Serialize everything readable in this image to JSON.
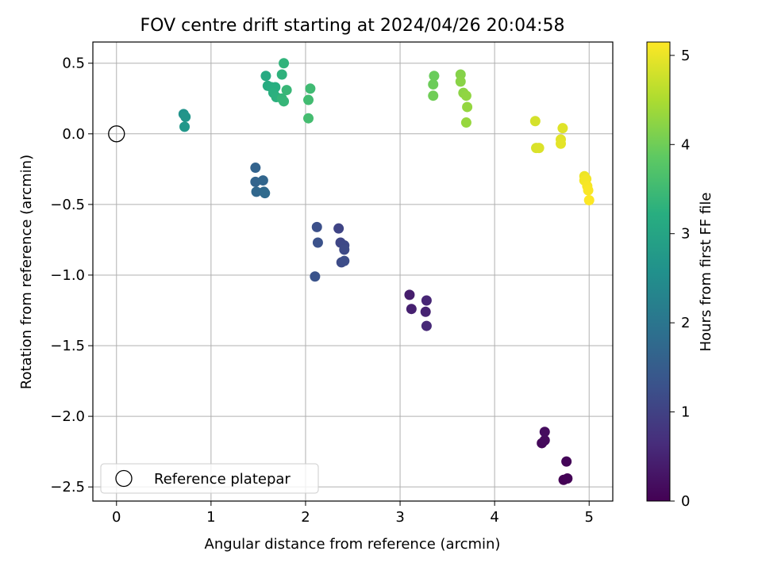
{
  "chart_data": {
    "type": "scatter",
    "title": "FOV centre drift starting at 2024/04/26 20:04:58",
    "xlabel": "Angular distance from reference (arcmin)",
    "ylabel": "Rotation from reference (arcmin)",
    "xlim": [
      -0.25,
      5.25
    ],
    "ylim": [
      -2.6,
      0.65
    ],
    "xticks": [
      0,
      1,
      2,
      3,
      4,
      5
    ],
    "xtick_labels": [
      "0",
      "1",
      "2",
      "3",
      "4",
      "5"
    ],
    "yticks": [
      0.5,
      0.0,
      -0.5,
      -1.0,
      -1.5,
      -2.0,
      -2.5
    ],
    "ytick_labels": [
      "0.5",
      "0.0",
      "−0.5",
      "−1.0",
      "−1.5",
      "−2.0",
      "−2.5"
    ],
    "grid": true,
    "colormap": "viridis",
    "colorbar": {
      "label": "Hours from first FF file",
      "range": [
        0,
        5.15
      ],
      "ticks": [
        0,
        1,
        2,
        3,
        4,
        5
      ],
      "tick_labels": [
        "0",
        "1",
        "2",
        "3",
        "4",
        "5"
      ]
    },
    "legend": {
      "entries": [
        "Reference platepar"
      ],
      "placement": "lower-left"
    },
    "reference": {
      "x": 0.0,
      "y": 0.0
    },
    "points": [
      {
        "x": 4.73,
        "y": -2.45,
        "t": 0.0
      },
      {
        "x": 4.77,
        "y": -2.44,
        "t": 0.03
      },
      {
        "x": 4.76,
        "y": -2.32,
        "t": 0.06
      },
      {
        "x": 4.5,
        "y": -2.19,
        "t": 0.1
      },
      {
        "x": 4.53,
        "y": -2.17,
        "t": 0.13
      },
      {
        "x": 4.53,
        "y": -2.11,
        "t": 0.16
      },
      {
        "x": 3.1,
        "y": -1.14,
        "t": 0.42
      },
      {
        "x": 3.12,
        "y": -1.24,
        "t": 0.46
      },
      {
        "x": 3.27,
        "y": -1.26,
        "t": 0.5
      },
      {
        "x": 3.28,
        "y": -1.18,
        "t": 0.54
      },
      {
        "x": 3.28,
        "y": -1.36,
        "t": 0.58
      },
      {
        "x": 2.35,
        "y": -0.67,
        "t": 1.05
      },
      {
        "x": 2.37,
        "y": -0.77,
        "t": 1.08
      },
      {
        "x": 2.41,
        "y": -0.79,
        "t": 1.11
      },
      {
        "x": 2.41,
        "y": -0.82,
        "t": 1.14
      },
      {
        "x": 2.38,
        "y": -0.91,
        "t": 1.17
      },
      {
        "x": 2.41,
        "y": -0.9,
        "t": 1.2
      },
      {
        "x": 2.12,
        "y": -0.66,
        "t": 1.25
      },
      {
        "x": 2.13,
        "y": -0.77,
        "t": 1.28
      },
      {
        "x": 2.1,
        "y": -1.01,
        "t": 1.31
      },
      {
        "x": 1.47,
        "y": -0.24,
        "t": 1.62
      },
      {
        "x": 1.47,
        "y": -0.34,
        "t": 1.65
      },
      {
        "x": 1.55,
        "y": -0.33,
        "t": 1.68
      },
      {
        "x": 1.48,
        "y": -0.41,
        "t": 1.71
      },
      {
        "x": 1.56,
        "y": -0.41,
        "t": 1.74
      },
      {
        "x": 1.57,
        "y": -0.42,
        "t": 1.77
      },
      {
        "x": 0.71,
        "y": 0.14,
        "t": 2.62
      },
      {
        "x": 0.73,
        "y": 0.12,
        "t": 2.66
      },
      {
        "x": 0.72,
        "y": 0.05,
        "t": 2.7
      },
      {
        "x": 1.58,
        "y": 0.41,
        "t": 3.12
      },
      {
        "x": 1.6,
        "y": 0.34,
        "t": 3.15
      },
      {
        "x": 1.64,
        "y": 0.33,
        "t": 3.18
      },
      {
        "x": 1.68,
        "y": 0.33,
        "t": 3.21
      },
      {
        "x": 1.66,
        "y": 0.29,
        "t": 3.24
      },
      {
        "x": 1.69,
        "y": 0.26,
        "t": 3.27
      },
      {
        "x": 1.75,
        "y": 0.42,
        "t": 3.3
      },
      {
        "x": 1.77,
        "y": 0.5,
        "t": 3.33
      },
      {
        "x": 1.75,
        "y": 0.25,
        "t": 3.36
      },
      {
        "x": 1.77,
        "y": 0.23,
        "t": 3.39
      },
      {
        "x": 1.8,
        "y": 0.31,
        "t": 3.42
      },
      {
        "x": 2.05,
        "y": 0.32,
        "t": 3.5
      },
      {
        "x": 2.03,
        "y": 0.24,
        "t": 3.53
      },
      {
        "x": 2.03,
        "y": 0.11,
        "t": 3.56
      },
      {
        "x": 3.36,
        "y": 0.41,
        "t": 3.95
      },
      {
        "x": 3.35,
        "y": 0.35,
        "t": 3.98
      },
      {
        "x": 3.35,
        "y": 0.27,
        "t": 4.01
      },
      {
        "x": 3.64,
        "y": 0.42,
        "t": 4.18
      },
      {
        "x": 3.64,
        "y": 0.37,
        "t": 4.21
      },
      {
        "x": 3.67,
        "y": 0.29,
        "t": 4.24
      },
      {
        "x": 3.7,
        "y": 0.27,
        "t": 4.27
      },
      {
        "x": 3.71,
        "y": 0.19,
        "t": 4.3
      },
      {
        "x": 3.7,
        "y": 0.08,
        "t": 4.33
      },
      {
        "x": 4.43,
        "y": 0.09,
        "t": 4.82
      },
      {
        "x": 4.44,
        "y": -0.1,
        "t": 4.85
      },
      {
        "x": 4.47,
        "y": -0.1,
        "t": 4.88
      },
      {
        "x": 4.72,
        "y": 0.04,
        "t": 4.91
      },
      {
        "x": 4.7,
        "y": -0.04,
        "t": 4.93
      },
      {
        "x": 4.7,
        "y": -0.07,
        "t": 4.95
      },
      {
        "x": 4.95,
        "y": -0.3,
        "t": 5.02
      },
      {
        "x": 4.97,
        "y": -0.32,
        "t": 5.05
      },
      {
        "x": 4.95,
        "y": -0.33,
        "t": 5.07
      },
      {
        "x": 4.98,
        "y": -0.37,
        "t": 5.09
      },
      {
        "x": 4.99,
        "y": -0.4,
        "t": 5.12
      },
      {
        "x": 5.0,
        "y": -0.47,
        "t": 5.14
      }
    ]
  }
}
